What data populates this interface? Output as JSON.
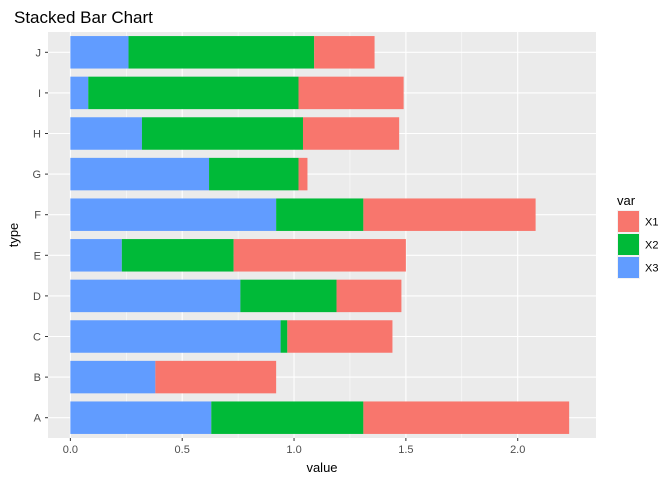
{
  "chart_data": {
    "type": "bar",
    "orientation": "horizontal",
    "stacked": true,
    "title": "Stacked Bar Chart",
    "xlabel": "value",
    "ylabel": "type",
    "categories": [
      "A",
      "B",
      "C",
      "D",
      "E",
      "F",
      "G",
      "H",
      "I",
      "J"
    ],
    "series": [
      {
        "name": "X3",
        "color": "#619CFF",
        "values": [
          0.63,
          0.38,
          0.94,
          0.76,
          0.23,
          0.92,
          0.62,
          0.32,
          0.08,
          0.26
        ]
      },
      {
        "name": "X2",
        "color": "#00BA38",
        "values": [
          0.68,
          0.0,
          0.03,
          0.43,
          0.5,
          0.39,
          0.4,
          0.72,
          0.94,
          0.83
        ]
      },
      {
        "name": "X1",
        "color": "#F8766D",
        "values": [
          0.92,
          0.54,
          0.47,
          0.29,
          0.77,
          0.77,
          0.04,
          0.43,
          0.47,
          0.27
        ]
      }
    ],
    "xlim": [
      -0.1,
      2.35
    ],
    "xticks": [
      0.0,
      0.5,
      1.0,
      1.5,
      2.0
    ],
    "xtick_labels": [
      "0.0",
      "0.5",
      "1.0",
      "1.5",
      "2.0"
    ],
    "grid": true,
    "legend": {
      "title": "var",
      "placement": "right",
      "entries": [
        {
          "label": "X1",
          "color": "#F8766D"
        },
        {
          "label": "X2",
          "color": "#00BA38"
        },
        {
          "label": "X3",
          "color": "#619CFF"
        }
      ]
    }
  }
}
